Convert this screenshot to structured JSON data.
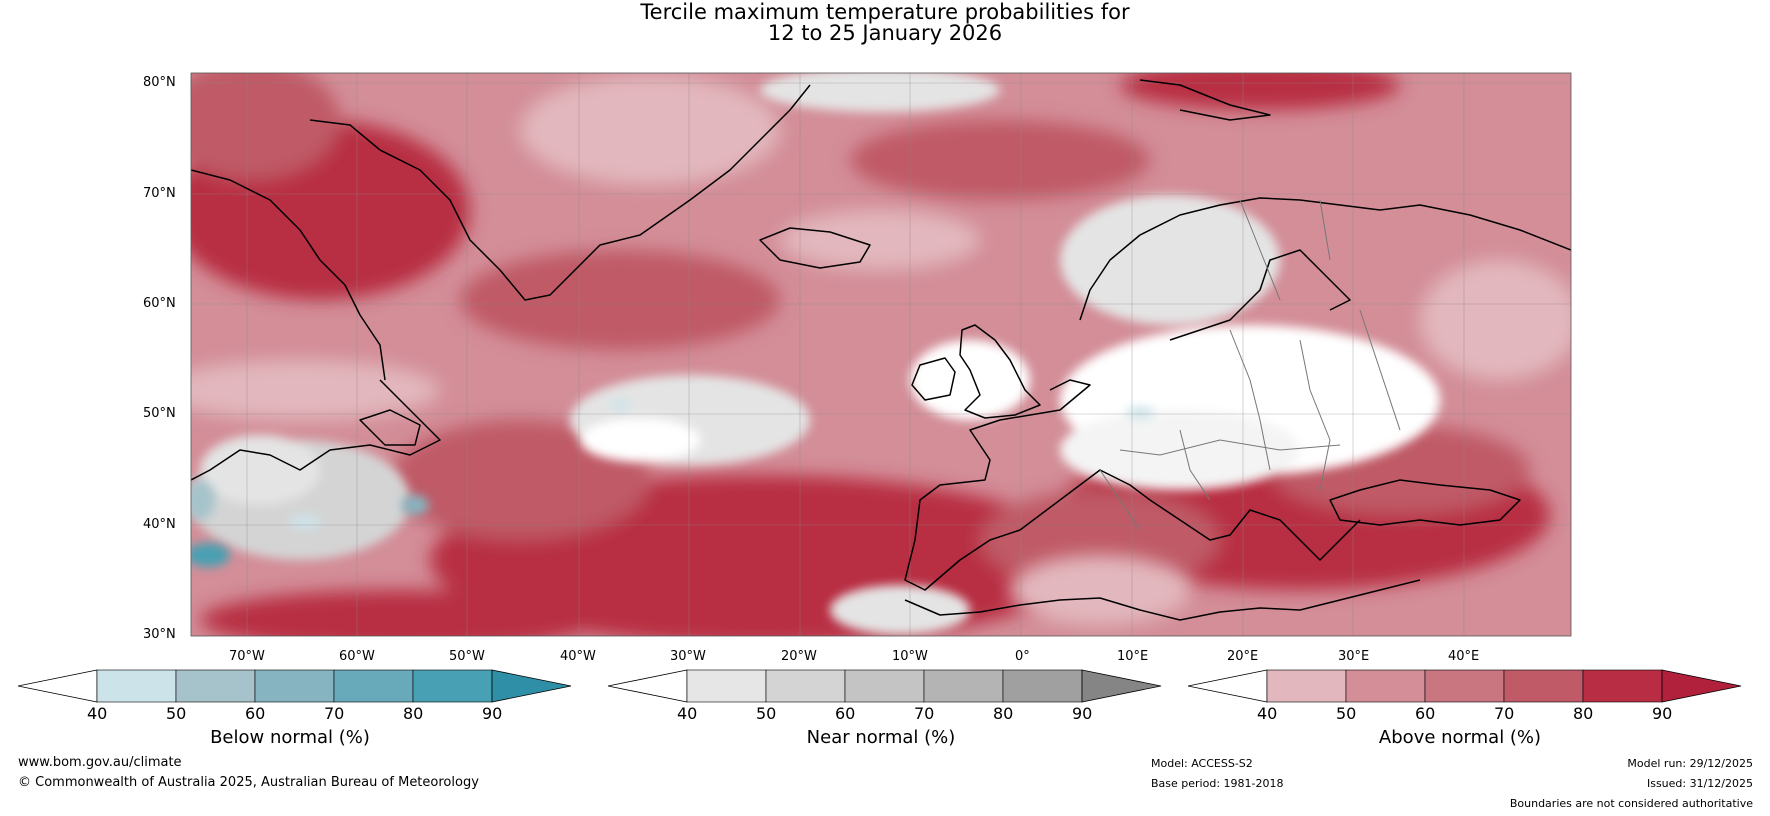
{
  "title_line1": "Tercile maximum temperature probabilities for",
  "title_line2": "12 to 25 January 2026",
  "lat_labels": [
    "80°N",
    "70°N",
    "60°N",
    "50°N",
    "40°N",
    "30°N"
  ],
  "lon_labels": [
    "70°W",
    "60°W",
    "50°W",
    "40°W",
    "30°W",
    "20°W",
    "10°W",
    "0°",
    "10°E",
    "20°E",
    "30°E",
    "40°E"
  ],
  "colorbars": [
    {
      "name": "Below normal (%)",
      "ticks": [
        "40",
        "50",
        "60",
        "70",
        "80",
        "90"
      ],
      "colors": [
        "#ffffff",
        "#cde3ea",
        "#a6c3cb",
        "#86b4c0",
        "#68a9ba",
        "#47a0b3",
        "#2e8fa6"
      ]
    },
    {
      "name": "Near normal (%)",
      "ticks": [
        "40",
        "50",
        "60",
        "70",
        "80",
        "90"
      ],
      "colors": [
        "#ffffff",
        "#e6e6e6",
        "#d4d4d4",
        "#c4c4c4",
        "#b4b4b4",
        "#a0a0a0",
        "#858585"
      ]
    },
    {
      "name": "Above normal (%)",
      "ticks": [
        "40",
        "50",
        "60",
        "70",
        "80",
        "90"
      ],
      "colors": [
        "#ffffff",
        "#e2b7bd",
        "#d38e98",
        "#c97680",
        "#bf5a66",
        "#b82d43",
        "#b2213b"
      ]
    }
  ],
  "footer": {
    "website": "www.bom.gov.au/climate",
    "copyright": "© Commonwealth of Australia 2025, Australian Bureau of Meteorology",
    "model": "Model: ACCESS-S2",
    "base_period": "Base period: 1981-2018",
    "model_run": "Model run: 29/12/2025",
    "issued": "Issued: 31/12/2025",
    "disclaimer": "Boundaries are not considered authoritative"
  },
  "map_colors": {
    "ocean_base": "#d38e98",
    "above_80": "#b82d43",
    "above_70": "#bf5a66",
    "above_60": "#c97680",
    "above_50": "#d38e98",
    "above_40": "#e2b7bd",
    "near": "#e4e4e4",
    "below": "#a6c3cb"
  }
}
